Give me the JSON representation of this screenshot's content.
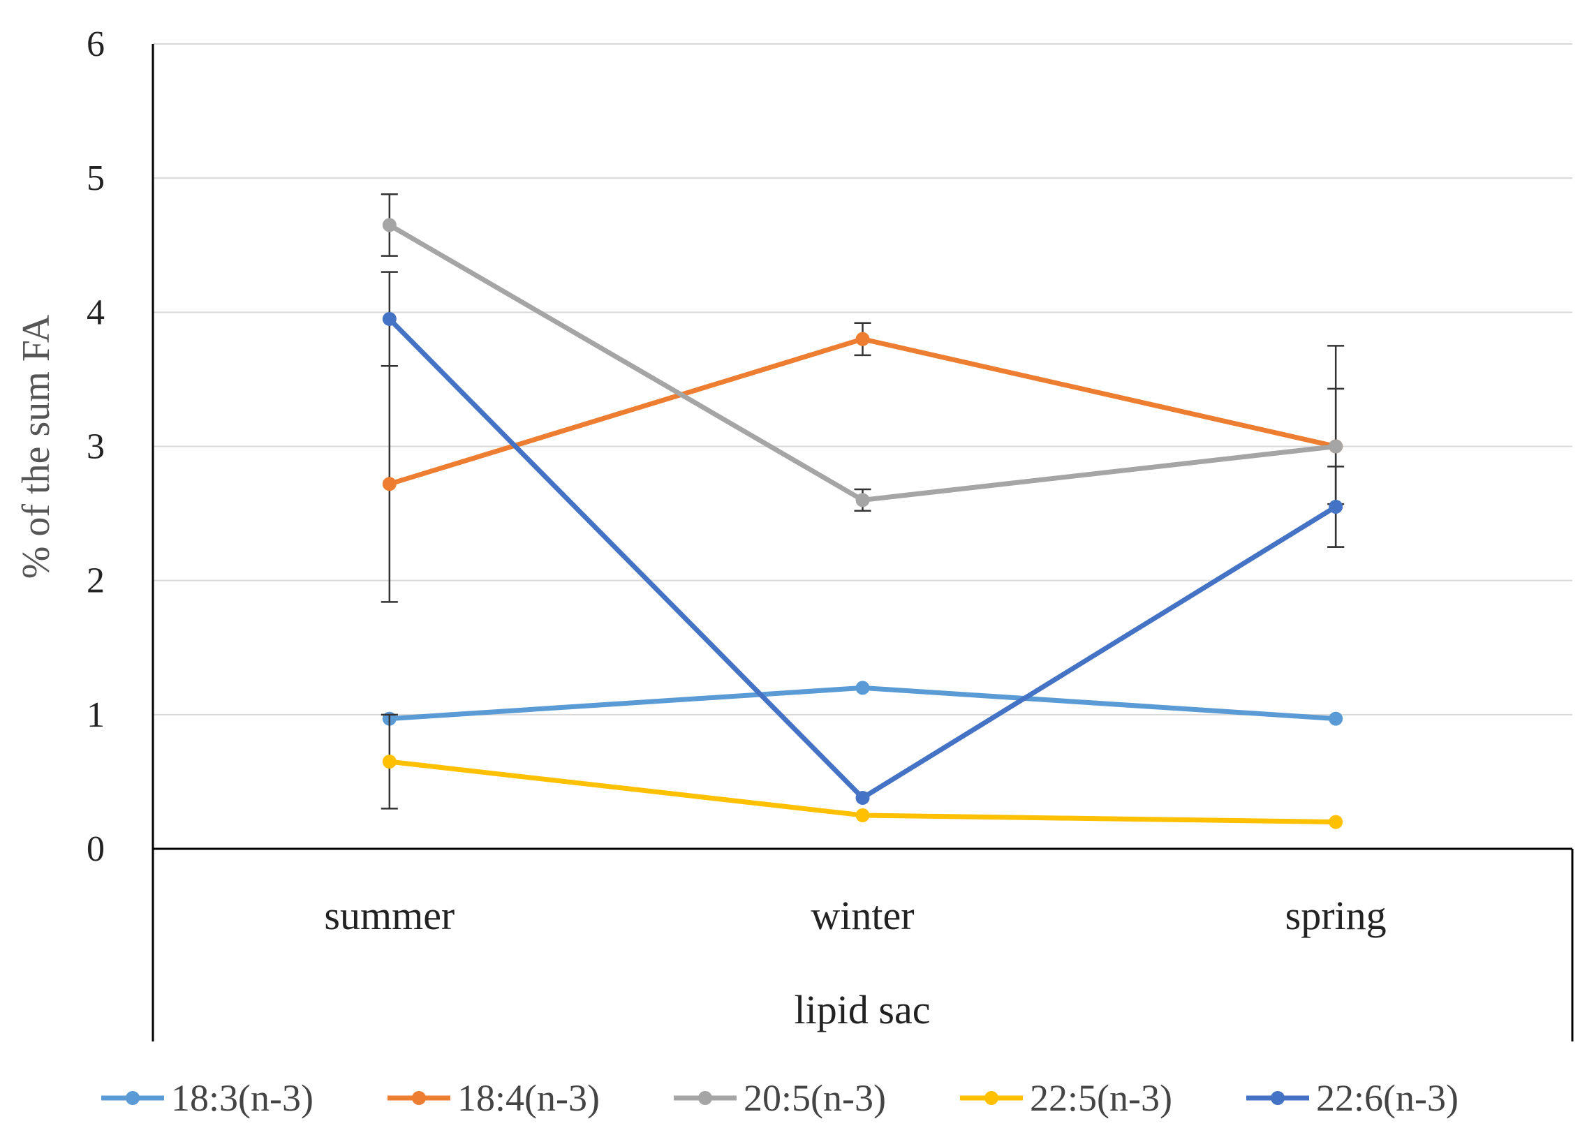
{
  "chart_data": {
    "type": "line",
    "title": "",
    "categories": [
      "summer",
      "winter",
      "spring"
    ],
    "xlabel": "lipid sac",
    "ylabel": "% of the sum FA",
    "ylim": [
      0,
      6
    ],
    "yticks": [
      0,
      1,
      2,
      3,
      4,
      5,
      6
    ],
    "grid": true,
    "legend_position": "bottom",
    "series": [
      {
        "name": "18:3(n-3)",
        "color": "#5B9BD5",
        "values": [
          0.97,
          1.2,
          0.97
        ],
        "error": [
          0,
          0,
          0
        ]
      },
      {
        "name": "18:4(n-3)",
        "color": "#ED7D31",
        "values": [
          2.72,
          3.8,
          3.0
        ],
        "error": [
          0.88,
          0.12,
          0.43
        ]
      },
      {
        "name": "20:5(n-3)",
        "color": "#A5A5A5",
        "values": [
          4.65,
          2.6,
          3.0
        ],
        "error": [
          0.23,
          0.08,
          0.75
        ]
      },
      {
        "name": "22:5(n-3)",
        "color": "#FFC000",
        "values": [
          0.65,
          0.25,
          0.2
        ],
        "error": [
          0.35,
          0,
          0
        ]
      },
      {
        "name": "22:6(n-3)",
        "color": "#4472C4",
        "values": [
          3.95,
          0.38,
          2.55
        ],
        "error": [
          0.35,
          0,
          0.3
        ]
      }
    ]
  }
}
